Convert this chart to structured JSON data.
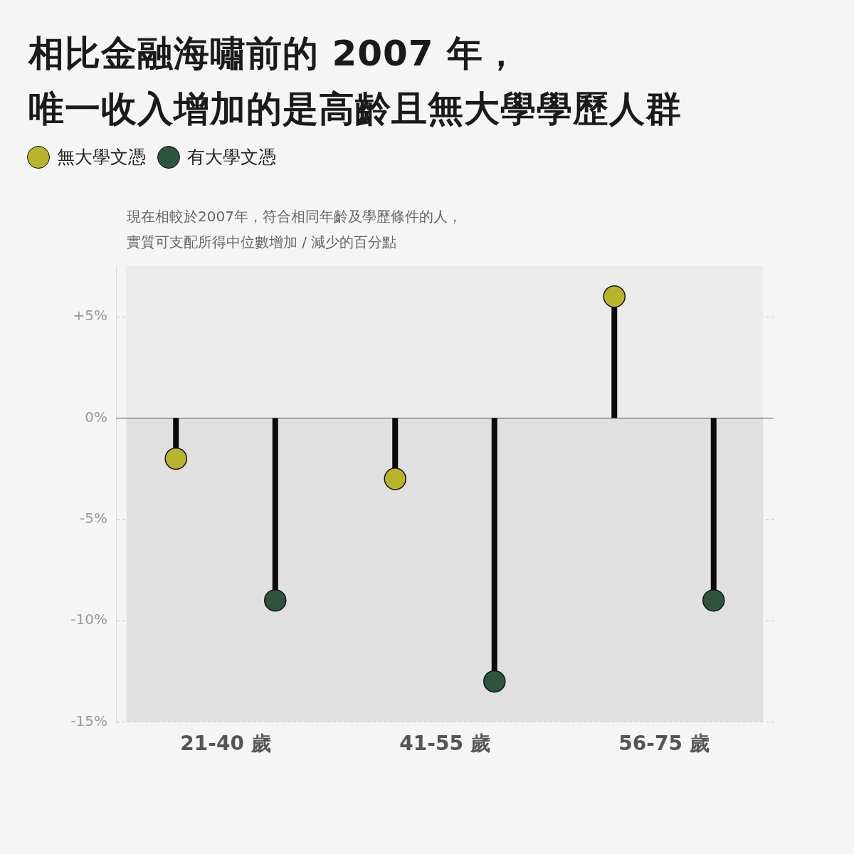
{
  "chart_data": {
    "type": "lollipop",
    "title": "相比金融海嘯前的 2007 年，唯一收入增加的是高齡且無大學學歷人群",
    "ylabel": "現在相較於2007年，符合相同年齡及學歷條件的人，實質可支配所得中位數增加 / 減少的百分點",
    "categories": [
      "21-40 歲",
      "41-55 歲",
      "56-75 歲"
    ],
    "series": [
      {
        "name": "無大學文憑",
        "color": "#b8b42c",
        "values": [
          -2,
          -3,
          6
        ]
      },
      {
        "name": "有大學文憑",
        "color": "#2e5440",
        "values": [
          -9,
          -13,
          -9
        ]
      }
    ],
    "ylim": [
      -15,
      7.5
    ],
    "yticks": [
      {
        "value": -15,
        "label": "-15%"
      },
      {
        "value": -10,
        "label": "-10%"
      },
      {
        "value": -5,
        "label": "-5%"
      },
      {
        "value": 0,
        "label": "0%"
      },
      {
        "value": 5,
        "label": "+5%"
      }
    ],
    "bands": [
      {
        "axis": "y",
        "from": 0,
        "to": 7.5,
        "color": "#ebebeb"
      },
      {
        "axis": "y",
        "from": -15,
        "to": 0,
        "color": "#e0e0e0"
      }
    ],
    "grid": "y",
    "legend": "top left",
    "marker": "circle"
  }
}
